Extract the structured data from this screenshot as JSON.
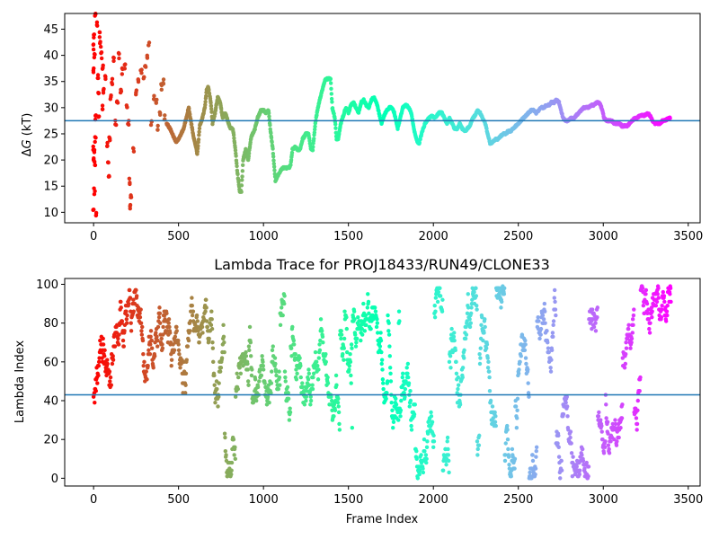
{
  "chart_data": [
    {
      "type": "scatter",
      "title": "",
      "xlabel": "",
      "ylabel": "ΔG (kT)",
      "ylabel_prefix": "Δ",
      "ylabel_var": "G",
      "ylabel_unit": " (kT)",
      "xlim": [
        -170,
        3570
      ],
      "ylim": [
        8,
        48
      ],
      "xticks": [
        0,
        500,
        1000,
        1500,
        2000,
        2500,
        3000,
        3500
      ],
      "yticks": [
        10,
        15,
        20,
        25,
        30,
        35,
        40,
        45
      ],
      "reference_line": {
        "y": 27.5,
        "color": "#1f77b4"
      },
      "colormap": "rainbow (frame index)",
      "n_frames": 3400,
      "early_points": [
        [
          0,
          10
        ],
        [
          5,
          14
        ],
        [
          0,
          20
        ],
        [
          5,
          21.5
        ],
        [
          0,
          22
        ],
        [
          8,
          19.5
        ],
        [
          0,
          37
        ],
        [
          5,
          40
        ],
        [
          0,
          41.5
        ],
        [
          3,
          44
        ],
        [
          10,
          47.5
        ],
        [
          15,
          9.5
        ],
        [
          12,
          28
        ],
        [
          10,
          24
        ],
        [
          20,
          46
        ],
        [
          25,
          36
        ],
        [
          30,
          33
        ],
        [
          30,
          28
        ],
        [
          35,
          44
        ],
        [
          40,
          42
        ],
        [
          45,
          40
        ],
        [
          50,
          30
        ],
        [
          55,
          38
        ],
        [
          60,
          33
        ],
        [
          70,
          36
        ],
        [
          80,
          23
        ],
        [
          85,
          20
        ],
        [
          90,
          17
        ],
        [
          95,
          24
        ],
        [
          100,
          32
        ],
        [
          110,
          35
        ],
        [
          120,
          39
        ],
        [
          130,
          27
        ],
        [
          140,
          31
        ],
        [
          150,
          40
        ],
        [
          160,
          33
        ],
        [
          170,
          37
        ],
        [
          185,
          38
        ],
        [
          195,
          30
        ],
        [
          205,
          27
        ],
        [
          210,
          16
        ],
        [
          215,
          11
        ],
        [
          220,
          13
        ],
        [
          235,
          22
        ],
        [
          250,
          33
        ],
        [
          265,
          35
        ],
        [
          280,
          37
        ],
        [
          295,
          36
        ],
        [
          305,
          38
        ],
        [
          315,
          40
        ],
        [
          325,
          42
        ],
        [
          340,
          27
        ],
        [
          355,
          32
        ],
        [
          370,
          31
        ],
        [
          380,
          26
        ],
        [
          390,
          29
        ],
        [
          400,
          34
        ],
        [
          410,
          35
        ],
        [
          420,
          28
        ]
      ],
      "trace": [
        [
          430,
          27
        ],
        [
          450,
          26
        ],
        [
          470,
          24.5
        ],
        [
          485,
          23.5
        ],
        [
          500,
          24
        ],
        [
          515,
          25
        ],
        [
          530,
          26
        ],
        [
          545,
          28
        ],
        [
          560,
          30
        ],
        [
          575,
          27
        ],
        [
          590,
          24
        ],
        [
          600,
          23
        ],
        [
          610,
          21
        ],
        [
          625,
          26.5
        ],
        [
          640,
          28
        ],
        [
          655,
          30
        ],
        [
          665,
          33.5
        ],
        [
          675,
          34
        ],
        [
          690,
          31
        ],
        [
          700,
          27
        ],
        [
          715,
          29
        ],
        [
          730,
          32
        ],
        [
          745,
          31
        ],
        [
          760,
          28
        ],
        [
          775,
          29
        ],
        [
          790,
          27.5
        ],
        [
          805,
          26
        ],
        [
          820,
          26
        ],
        [
          835,
          22
        ],
        [
          845,
          18
        ],
        [
          860,
          14
        ],
        [
          870,
          14
        ],
        [
          880,
          20
        ],
        [
          895,
          22
        ],
        [
          910,
          20
        ],
        [
          925,
          24
        ],
        [
          935,
          25
        ],
        [
          950,
          26
        ],
        [
          965,
          28
        ],
        [
          985,
          29.5
        ],
        [
          1000,
          29.5
        ],
        [
          1015,
          29
        ],
        [
          1030,
          29.5
        ],
        [
          1040,
          26
        ],
        [
          1055,
          22
        ],
        [
          1070,
          16
        ],
        [
          1085,
          17
        ],
        [
          1100,
          18
        ],
        [
          1115,
          18.5
        ],
        [
          1130,
          18.5
        ],
        [
          1150,
          18.5
        ],
        [
          1160,
          19
        ],
        [
          1170,
          22
        ],
        [
          1185,
          22.5
        ],
        [
          1200,
          22
        ],
        [
          1215,
          22
        ],
        [
          1230,
          24
        ],
        [
          1250,
          25
        ],
        [
          1265,
          25
        ],
        [
          1280,
          22
        ],
        [
          1290,
          22
        ],
        [
          1305,
          27
        ],
        [
          1320,
          30
        ],
        [
          1335,
          32
        ],
        [
          1350,
          34
        ],
        [
          1365,
          35.5
        ],
        [
          1380,
          35.5
        ],
        [
          1395,
          35.5
        ],
        [
          1405,
          30
        ],
        [
          1420,
          28
        ],
        [
          1430,
          24
        ],
        [
          1440,
          24
        ],
        [
          1455,
          27
        ],
        [
          1470,
          28.5
        ],
        [
          1485,
          30
        ],
        [
          1500,
          29
        ],
        [
          1515,
          30.5
        ],
        [
          1530,
          31
        ],
        [
          1545,
          30
        ],
        [
          1560,
          29
        ],
        [
          1575,
          31
        ],
        [
          1590,
          31.5
        ],
        [
          1605,
          30.5
        ],
        [
          1620,
          30
        ],
        [
          1635,
          31.5
        ],
        [
          1650,
          32
        ],
        [
          1665,
          31
        ],
        [
          1680,
          29
        ],
        [
          1695,
          27
        ],
        [
          1710,
          28.5
        ],
        [
          1725,
          29.5
        ],
        [
          1740,
          30
        ],
        [
          1755,
          30
        ],
        [
          1770,
          29
        ],
        [
          1790,
          26
        ],
        [
          1805,
          28
        ],
        [
          1820,
          30
        ],
        [
          1840,
          30.5
        ],
        [
          1855,
          30
        ],
        [
          1870,
          29
        ],
        [
          1885,
          26
        ],
        [
          1900,
          24
        ],
        [
          1915,
          23
        ],
        [
          1930,
          25
        ],
        [
          1945,
          26.5
        ],
        [
          1960,
          27.5
        ],
        [
          1975,
          28
        ],
        [
          1990,
          28.5
        ],
        [
          2005,
          28
        ],
        [
          2020,
          28.5
        ],
        [
          2035,
          29
        ],
        [
          2050,
          29
        ],
        [
          2065,
          28
        ],
        [
          2080,
          27
        ],
        [
          2095,
          28
        ],
        [
          2110,
          27
        ],
        [
          2125,
          26
        ],
        [
          2140,
          26
        ],
        [
          2155,
          27
        ],
        [
          2170,
          26
        ],
        [
          2185,
          25.5
        ],
        [
          2200,
          26
        ],
        [
          2215,
          26.5
        ],
        [
          2230,
          28
        ],
        [
          2245,
          28.5
        ],
        [
          2260,
          29.5
        ],
        [
          2275,
          29
        ],
        [
          2290,
          28
        ],
        [
          2305,
          27
        ],
        [
          2320,
          25
        ],
        [
          2335,
          23
        ],
        [
          2350,
          23.5
        ],
        [
          2365,
          24
        ],
        [
          2380,
          24
        ],
        [
          2395,
          24.5
        ],
        [
          2410,
          25
        ],
        [
          2425,
          25
        ],
        [
          2440,
          25.5
        ],
        [
          2455,
          25.5
        ],
        [
          2470,
          26
        ],
        [
          2485,
          26.5
        ],
        [
          2500,
          27
        ],
        [
          2515,
          27.5
        ],
        [
          2530,
          28
        ],
        [
          2545,
          28.5
        ],
        [
          2560,
          29
        ],
        [
          2575,
          29.5
        ],
        [
          2590,
          29.5
        ],
        [
          2605,
          29
        ],
        [
          2620,
          29.5
        ],
        [
          2635,
          30
        ],
        [
          2650,
          30
        ],
        [
          2665,
          30.5
        ],
        [
          2680,
          30.5
        ],
        [
          2695,
          31
        ],
        [
          2710,
          31
        ],
        [
          2725,
          31.5
        ],
        [
          2740,
          31
        ],
        [
          2755,
          29
        ],
        [
          2765,
          28
        ],
        [
          2780,
          27.5
        ],
        [
          2795,
          27.5
        ],
        [
          2810,
          28
        ],
        [
          2825,
          28
        ],
        [
          2840,
          28.5
        ],
        [
          2855,
          29
        ],
        [
          2870,
          29.5
        ],
        [
          2885,
          30
        ],
        [
          2900,
          30
        ],
        [
          2915,
          30
        ],
        [
          2930,
          30.5
        ],
        [
          2945,
          30.5
        ],
        [
          2960,
          31
        ],
        [
          2975,
          31
        ],
        [
          2990,
          30
        ],
        [
          3005,
          28
        ],
        [
          3020,
          27.5
        ],
        [
          3035,
          27.5
        ],
        [
          3050,
          27.5
        ],
        [
          3065,
          27
        ],
        [
          3080,
          27
        ],
        [
          3095,
          27
        ],
        [
          3110,
          26.5
        ],
        [
          3125,
          26.5
        ],
        [
          3140,
          26.5
        ],
        [
          3155,
          27
        ],
        [
          3170,
          27.5
        ],
        [
          3185,
          28
        ],
        [
          3200,
          28
        ],
        [
          3215,
          28.5
        ],
        [
          3230,
          28.5
        ],
        [
          3245,
          28.5
        ],
        [
          3260,
          29
        ],
        [
          3275,
          28.5
        ],
        [
          3290,
          27.5
        ],
        [
          3305,
          27
        ],
        [
          3320,
          27
        ],
        [
          3335,
          27
        ],
        [
          3350,
          27.5
        ],
        [
          3365,
          27.5
        ],
        [
          3380,
          28
        ],
        [
          3395,
          28
        ]
      ]
    },
    {
      "type": "scatter",
      "title": "Lambda Trace for PROJ18433/RUN49/CLONE33",
      "xlabel": "Frame Index",
      "ylabel": "Lambda Index",
      "xlim": [
        -170,
        3570
      ],
      "ylim": [
        -4,
        103
      ],
      "xticks": [
        0,
        500,
        1000,
        1500,
        2000,
        2500,
        3000,
        3500
      ],
      "yticks": [
        0,
        20,
        40,
        60,
        80,
        100
      ],
      "reference_line": {
        "y": 43,
        "color": "#1f77b4"
      },
      "colormap": "rainbow (frame index)",
      "n_frames": 3400,
      "value_range": [
        0,
        99
      ],
      "distribution": "random-walk points over lambda indices 0-99 for every frame"
    }
  ]
}
